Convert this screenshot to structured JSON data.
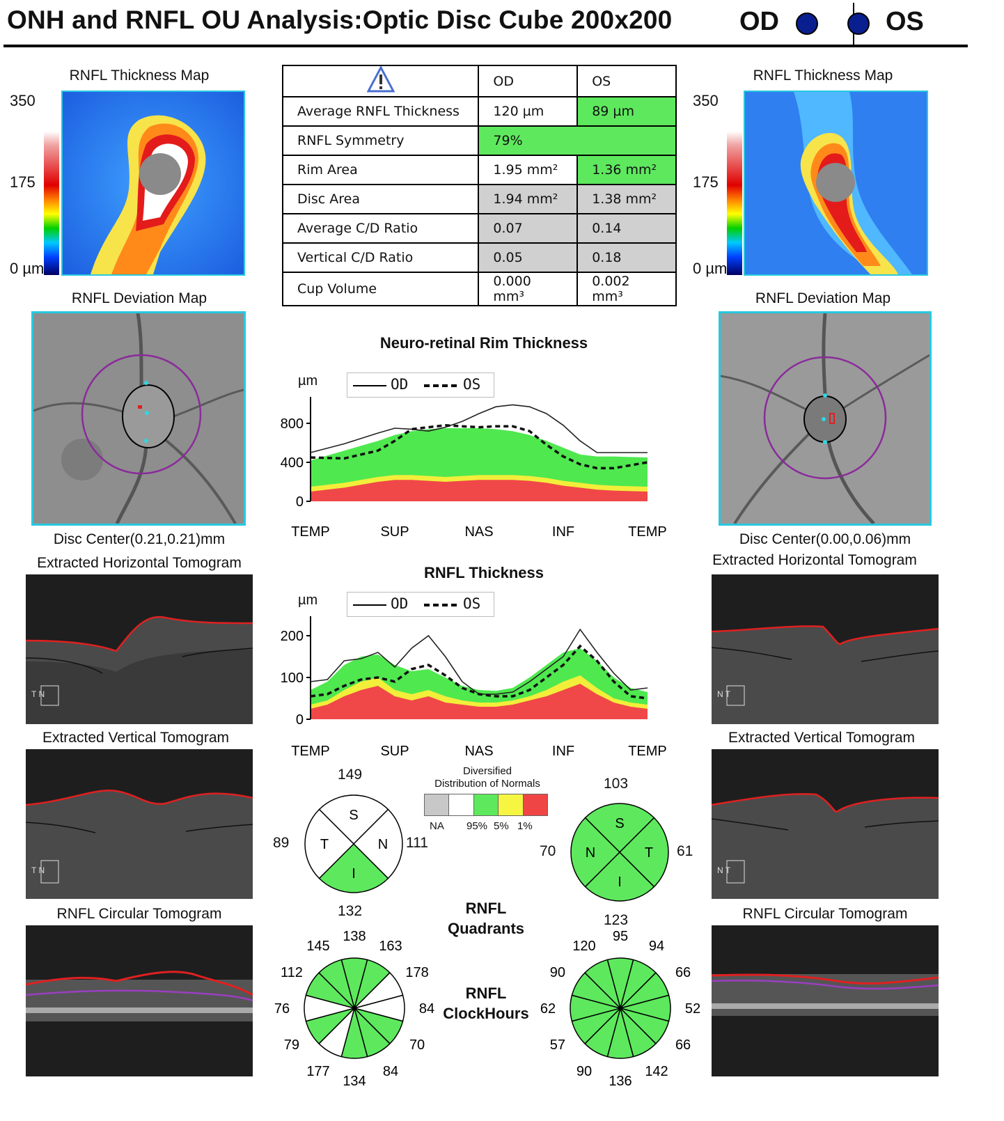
{
  "header": {
    "title": "ONH and RNFL OU Analysis:Optic Disc Cube 200x200",
    "od_label": "OD",
    "os_label": "OS",
    "eye_color": "#0a1f8f"
  },
  "left": {
    "thickness_map_title": "RNFL Thickness Map",
    "scale_top": "350",
    "scale_mid": "175",
    "scale_bottom": "0 µm",
    "deviation_map_title": "RNFL Deviation Map",
    "disc_center": "Disc Center(0.21,0.21)mm",
    "horiz_tomo_title": "Extracted Horizontal Tomogram",
    "vert_tomo_title": "Extracted Vertical Tomogram",
    "circ_tomo_title": "RNFL Circular Tomogram",
    "horiz_orient": "T N",
    "vert_orient": "T N"
  },
  "right": {
    "thickness_map_title": "RNFL Thickness Map",
    "scale_top": "350",
    "scale_mid": "175",
    "scale_bottom": "0 µm",
    "deviation_map_title": "RNFL Deviation Map",
    "disc_center": "Disc Center(0.00,0.06)mm",
    "horiz_tomo_title": "Extracted Horizontal Tomogram",
    "vert_tomo_title": "Extracted Vertical Tomogram",
    "circ_tomo_title": "RNFL Circular Tomogram",
    "horiz_orient": "N T",
    "vert_orient": "N T"
  },
  "table": {
    "col_od": "OD",
    "col_os": "OS",
    "warning_icon": "warning-triangle-icon",
    "rows": [
      {
        "label": "Average RNFL Thickness",
        "od": "120 µm",
        "os": "89 µm"
      },
      {
        "label": "RNFL Symmetry",
        "value": "79%"
      },
      {
        "label": "Rim Area",
        "od": "1.95 mm²",
        "os": "1.36 mm²"
      },
      {
        "label": "Disc Area",
        "od": "1.94 mm²",
        "os": "1.38 mm²"
      },
      {
        "label": "Average C/D Ratio",
        "od": "0.07",
        "os": "0.14"
      },
      {
        "label": "Vertical C/D Ratio",
        "od": "0.05",
        "os": "0.18"
      },
      {
        "label": "Cup Volume",
        "od": "0.000 mm³",
        "os": "0.002 mm³"
      }
    ]
  },
  "rim_chart": {
    "title": "Neuro-retinal Rim Thickness",
    "unit": "µm",
    "legend_od": "OD",
    "legend_os": "OS",
    "x_labels": [
      "TEMP",
      "SUP",
      "NAS",
      "INF",
      "TEMP"
    ]
  },
  "rnfl_chart": {
    "title": "RNFL Thickness",
    "unit": "µm",
    "legend_od": "OD",
    "legend_os": "OS",
    "x_labels": [
      "TEMP",
      "SUP",
      "NAS",
      "INF",
      "TEMP"
    ]
  },
  "chart_data": [
    {
      "type": "line",
      "title": "Neuro-retinal Rim Thickness",
      "ylabel": "µm",
      "x": [
        0,
        0.1,
        0.2,
        0.25,
        0.3,
        0.35,
        0.4,
        0.45,
        0.5,
        0.55,
        0.6,
        0.65,
        0.7,
        0.75,
        0.8,
        0.85,
        0.9,
        1.0
      ],
      "x_ticks": [
        "TEMP",
        "SUP",
        "NAS",
        "INF",
        "TEMP"
      ],
      "ylim": [
        0,
        1000
      ],
      "y_ticks": [
        0,
        400,
        800
      ],
      "series": [
        {
          "name": "OD",
          "style": "solid",
          "values": [
            500,
            590,
            700,
            750,
            740,
            720,
            760,
            820,
            900,
            970,
            990,
            970,
            900,
            780,
            620,
            500,
            500,
            500
          ]
        },
        {
          "name": "OS",
          "style": "dashed",
          "values": [
            450,
            440,
            520,
            620,
            740,
            760,
            780,
            770,
            760,
            770,
            770,
            720,
            580,
            460,
            380,
            340,
            340,
            400
          ]
        }
      ],
      "normative_bands": {
        "red_1pct": [
          100,
          140,
          200,
          220,
          220,
          210,
          200,
          210,
          220,
          220,
          220,
          210,
          190,
          160,
          140,
          120,
          110,
          100
        ],
        "yellow_5pct": [
          150,
          190,
          250,
          270,
          270,
          260,
          250,
          260,
          270,
          270,
          270,
          260,
          240,
          210,
          190,
          170,
          160,
          150
        ],
        "green_95pct": [
          420,
          520,
          620,
          680,
          720,
          740,
          750,
          750,
          750,
          740,
          720,
          680,
          620,
          550,
          480,
          460,
          460,
          450
        ]
      }
    },
    {
      "type": "line",
      "title": "RNFL Thickness",
      "ylabel": "µm",
      "x": [
        0,
        0.05,
        0.1,
        0.15,
        0.2,
        0.25,
        0.3,
        0.35,
        0.4,
        0.45,
        0.5,
        0.55,
        0.6,
        0.65,
        0.7,
        0.75,
        0.8,
        0.85,
        0.9,
        0.95,
        1.0
      ],
      "x_ticks": [
        "TEMP",
        "SUP",
        "NAS",
        "INF",
        "TEMP"
      ],
      "ylim": [
        0,
        230
      ],
      "y_ticks": [
        0,
        100,
        200
      ],
      "series": [
        {
          "name": "OD",
          "style": "solid",
          "values": [
            90,
            95,
            140,
            145,
            160,
            125,
            170,
            200,
            150,
            90,
            60,
            60,
            65,
            90,
            120,
            150,
            215,
            160,
            110,
            70,
            75
          ]
        },
        {
          "name": "OS",
          "style": "dashed",
          "values": [
            55,
            60,
            80,
            95,
            100,
            90,
            120,
            130,
            105,
            75,
            60,
            55,
            55,
            70,
            100,
            130,
            175,
            140,
            90,
            55,
            50
          ]
        }
      ],
      "normative_bands": {
        "red_1pct": [
          25,
          35,
          55,
          70,
          80,
          55,
          45,
          55,
          40,
          35,
          30,
          30,
          35,
          45,
          55,
          70,
          85,
          60,
          40,
          30,
          25
        ],
        "yellow_5pct": [
          35,
          45,
          70,
          90,
          100,
          70,
          60,
          70,
          55,
          45,
          40,
          40,
          45,
          55,
          70,
          90,
          105,
          75,
          50,
          40,
          35
        ],
        "green_95pct": [
          70,
          90,
          130,
          150,
          155,
          130,
          115,
          120,
          100,
          80,
          70,
          68,
          75,
          100,
          130,
          160,
          170,
          140,
          100,
          75,
          65
        ]
      }
    }
  ],
  "legend": {
    "title_line1": "Diversified",
    "title_line2": "Distribution of Normals",
    "labels": [
      "NA",
      "95%",
      "5%",
      "1%"
    ],
    "colors": [
      "#c8c8c8",
      "#ffffff",
      "#5ee85e",
      "#f5f542",
      "#f04545"
    ]
  },
  "quadrants": {
    "label_line1": "RNFL",
    "label_line2": "Quadrants",
    "od": {
      "S": "149",
      "T": "89",
      "N": "111",
      "I": "132",
      "letters": [
        "S",
        "T",
        "N",
        "I"
      ],
      "sector_colors": {
        "S": "#ffffff",
        "T": "#ffffff",
        "N": "#ffffff",
        "I": "#5ee85e"
      }
    },
    "os": {
      "S": "103",
      "N": "70",
      "T": "61",
      "I": "123",
      "letters": [
        "S",
        "N",
        "T",
        "I"
      ],
      "sector_colors": {
        "S": "#5ee85e",
        "T": "#5ee85e",
        "N": "#5ee85e",
        "I": "#5ee85e"
      }
    }
  },
  "clockhours": {
    "label_line1": "RNFL",
    "label_line2": "ClockHours",
    "od": {
      "values": [
        "138",
        "163",
        "178",
        "84",
        "70",
        "84",
        "134",
        "177",
        "79",
        "76",
        "112",
        "145"
      ],
      "colors": [
        "#5ee85e",
        "#5ee85e",
        "#ffffff",
        "#ffffff",
        "#5ee85e",
        "#5ee85e",
        "#5ee85e",
        "#ffffff",
        "#5ee85e",
        "#ffffff",
        "#5ee85e",
        "#5ee85e"
      ]
    },
    "os": {
      "values": [
        "95",
        "94",
        "66",
        "52",
        "66",
        "142",
        "136",
        "90",
        "57",
        "62",
        "90",
        "120"
      ],
      "colors": [
        "#5ee85e",
        "#5ee85e",
        "#5ee85e",
        "#5ee85e",
        "#5ee85e",
        "#5ee85e",
        "#5ee85e",
        "#5ee85e",
        "#5ee85e",
        "#5ee85e",
        "#5ee85e",
        "#5ee85e"
      ]
    }
  }
}
